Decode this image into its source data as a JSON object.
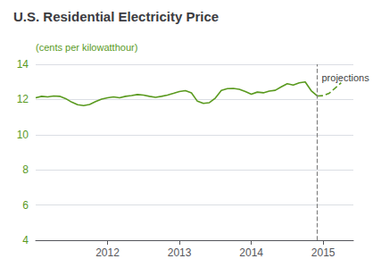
{
  "chart_data": {
    "type": "line",
    "title": "U.S. Residential Electricity Price",
    "y_label": "(cents per kilowatthour)",
    "series": [
      {
        "line_style": "solid",
        "color": "#5a9a1f",
        "x": [
          2011.0,
          2011.083,
          2011.167,
          2011.25,
          2011.333,
          2011.417,
          2011.5,
          2011.583,
          2011.667,
          2011.75,
          2011.833,
          2011.917,
          2012.0,
          2012.083,
          2012.167,
          2012.25,
          2012.333,
          2012.417,
          2012.5,
          2012.583,
          2012.667,
          2012.75,
          2012.833,
          2012.917,
          2013.0,
          2013.083,
          2013.167,
          2013.25,
          2013.333,
          2013.417,
          2013.5,
          2013.583,
          2013.667,
          2013.75,
          2013.833,
          2013.917,
          2014.0,
          2014.083,
          2014.167,
          2014.25,
          2014.333,
          2014.417,
          2014.5,
          2014.583,
          2014.667,
          2014.75,
          2014.833,
          2014.917
        ],
        "values": [
          12.1,
          12.18,
          12.15,
          12.2,
          12.18,
          12.05,
          11.85,
          11.7,
          11.65,
          11.72,
          11.88,
          12.02,
          12.1,
          12.15,
          12.1,
          12.18,
          12.22,
          12.28,
          12.25,
          12.18,
          12.12,
          12.18,
          12.25,
          12.35,
          12.45,
          12.5,
          12.38,
          11.9,
          11.78,
          11.82,
          12.08,
          12.52,
          12.62,
          12.63,
          12.58,
          12.45,
          12.3,
          12.42,
          12.38,
          12.48,
          12.52,
          12.72,
          12.9,
          12.82,
          12.95,
          13.0,
          12.5,
          12.2
        ]
      },
      {
        "line_style": "dashed",
        "color": "#5a9a1f",
        "x": [
          2014.917,
          2015.0,
          2015.083,
          2015.167,
          2015.25
        ],
        "values": [
          12.2,
          12.22,
          12.35,
          12.65,
          12.95
        ]
      }
    ],
    "vline": {
      "x": 2014.917,
      "color": "#808080",
      "line_style": "dashed"
    },
    "annotations": [
      {
        "text": "projections",
        "x": 2014.917,
        "y": 13.25
      }
    ],
    "xlim": [
      2011.0,
      2015.42
    ],
    "xticks": [
      2012,
      2013,
      2014,
      2015
    ],
    "ylim": [
      4,
      14
    ],
    "yticks": [
      4,
      6,
      8,
      10,
      12,
      14
    ],
    "grid": true
  }
}
